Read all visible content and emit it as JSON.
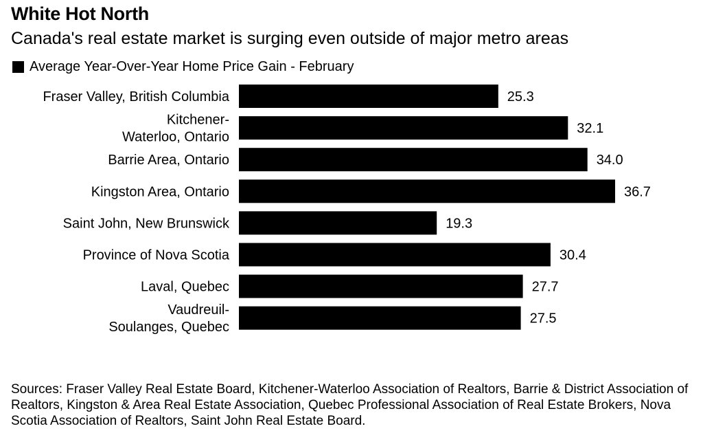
{
  "header": {
    "title": "White Hot North",
    "subtitle": "Canada's real estate market is surging even outside of major metro areas"
  },
  "legend": {
    "label": "Average Year-Over-Year Home Price Gain - February"
  },
  "chart_data": {
    "type": "bar",
    "orientation": "horizontal",
    "title": "White Hot North",
    "subtitle": "Canada's real estate market is surging even outside of major metro areas",
    "categories": [
      [
        "Fraser Valley, British Columbia"
      ],
      [
        "Kitchener-",
        "Waterloo, Ontario"
      ],
      [
        "Barrie Area, Ontario"
      ],
      [
        "Kingston Area, Ontario"
      ],
      [
        "Saint John, New Brunswick"
      ],
      [
        "Province of Nova Scotia"
      ],
      [
        "Laval, Quebec"
      ],
      [
        "Vaudreuil-",
        "Soulanges, Quebec"
      ]
    ],
    "series": [
      {
        "name": "Average Year-Over-Year Home Price Gain - February",
        "values": [
          25.3,
          32.1,
          34.0,
          36.7,
          19.3,
          30.4,
          27.7,
          27.5
        ],
        "labels": [
          "25.3",
          "32.1",
          "34.0",
          "36.7",
          "19.3",
          "30.4",
          "27.7",
          "27.5"
        ]
      }
    ],
    "xlim": [
      0,
      36.7
    ],
    "grid": false,
    "legend_position": "top-left",
    "bar_color": "#000000"
  },
  "footer": {
    "source": "Sources: Fraser Valley Real Estate Board, Kitchener-Waterloo Association of Realtors, Barrie & District Association of Realtors, Kingston & Area Real Estate Association, Quebec Professional Association of Real Estate Brokers, Nova Scotia Association of Realtors, Saint John Real Estate Board."
  }
}
